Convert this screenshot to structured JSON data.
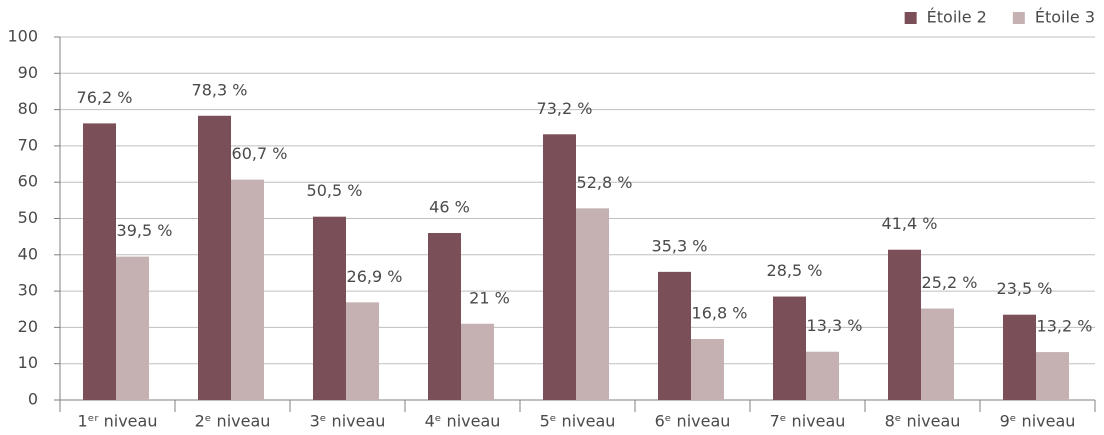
{
  "chart_data": {
    "type": "bar",
    "categories": [
      "1ᵉʳ niveau",
      "2ᵉ niveau",
      "3ᵉ niveau",
      "4ᵉ niveau",
      "5ᵉ niveau",
      "6ᵉ niveau",
      "7ᵉ niveau",
      "8ᵉ niveau",
      "9ᵉ niveau"
    ],
    "series": [
      {
        "name": "Étoile 2",
        "color": "#7a4f57",
        "values": [
          76.2,
          78.3,
          50.5,
          46,
          73.2,
          35.3,
          28.5,
          41.4,
          23.5
        ],
        "value_labels": [
          "76,2 %",
          "78,3 %",
          "50,5 %",
          "46 %",
          "73,2 %",
          "35,3 %",
          "28,5 %",
          "41,4 %",
          "23,5 %"
        ]
      },
      {
        "name": "Étoile 3",
        "color": "#c5b1b1",
        "values": [
          39.5,
          60.7,
          26.9,
          21,
          52.8,
          16.8,
          13.3,
          25.2,
          13.2
        ],
        "value_labels": [
          "39,5 %",
          "60,7 %",
          "26,9 %",
          "21 %",
          "52,8 %",
          "16,8 %",
          "13,3 %",
          "25,2 %",
          "13,2 %"
        ]
      }
    ],
    "ylim": [
      0,
      100
    ],
    "yticks": [
      0,
      10,
      20,
      30,
      40,
      50,
      60,
      70,
      80,
      90,
      100
    ],
    "grid": true,
    "legend": "top-right"
  }
}
